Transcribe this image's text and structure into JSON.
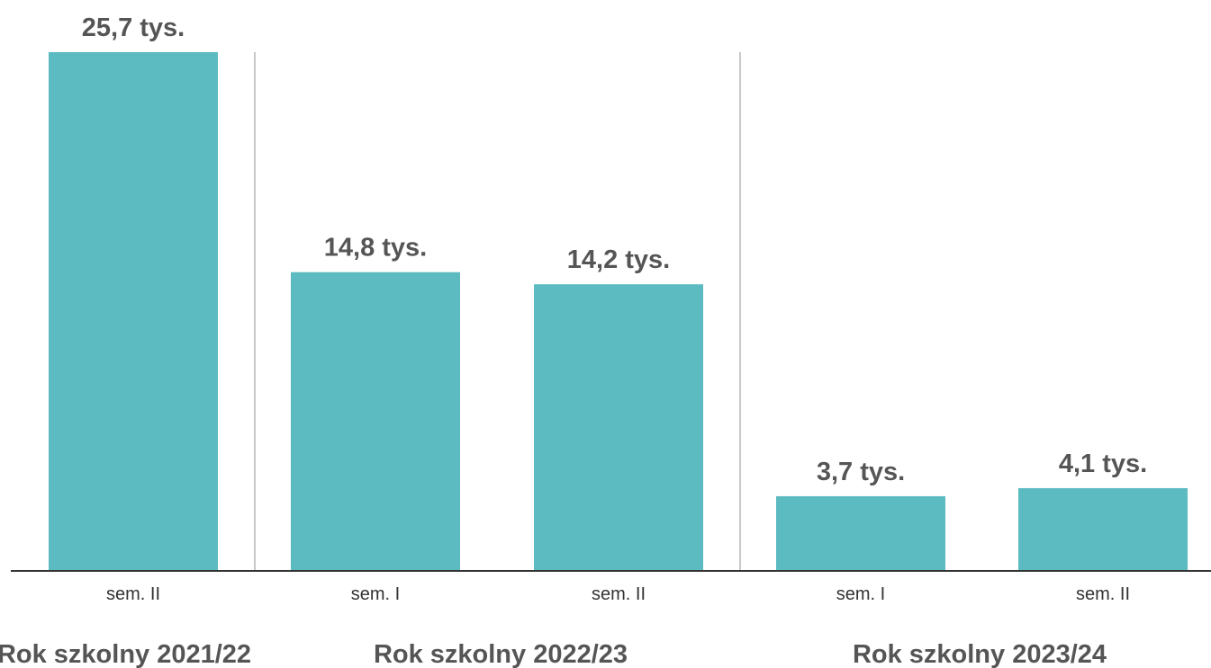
{
  "chart_data": {
    "type": "bar",
    "categories": [
      "sem. II",
      "sem. I",
      "sem. II",
      "sem. I",
      "sem. II"
    ],
    "values": [
      25.7,
      14.8,
      14.2,
      3.7,
      4.1
    ],
    "value_labels": [
      "25,7 tys.",
      "14,8 tys.",
      "14,2 tys.",
      "3,7 tys.",
      "4,1 tys."
    ],
    "groups": [
      {
        "label": "Rok szkolny 2021/22",
        "bars": [
          0
        ]
      },
      {
        "label": "Rok szkolny 2022/23",
        "bars": [
          1,
          2
        ]
      },
      {
        "label": "Rok szkolny 2023/24",
        "bars": [
          3,
          4
        ]
      }
    ],
    "bar_color": "#5cbbc1",
    "ylim": [
      0,
      25.7
    ],
    "grid": false,
    "legend": "none"
  }
}
